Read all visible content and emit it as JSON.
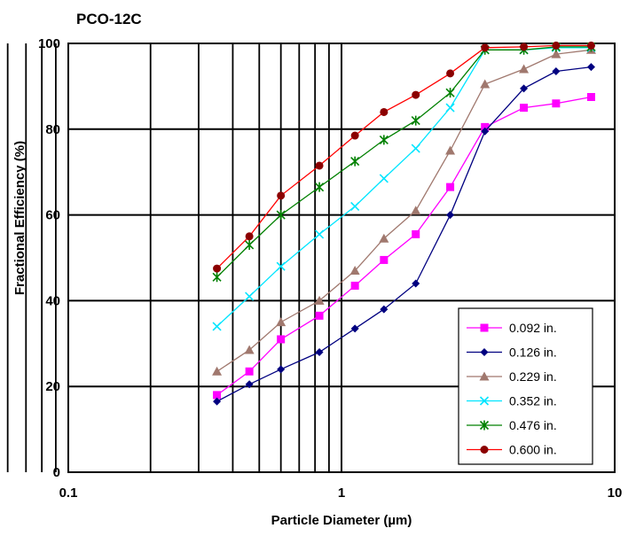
{
  "chart_data": {
    "type": "line",
    "title": "PCO-12C",
    "xlabel": "Particle Diameter (µm)",
    "ylabel": "Fractional Efficiency (%)",
    "x_scale": "log",
    "xlim": [
      0.1,
      10
    ],
    "ylim": [
      0,
      100
    ],
    "x_tick_labels": [
      "0.1",
      "1",
      "10"
    ],
    "y_tick_labels": [
      "0",
      "20",
      "40",
      "60",
      "80",
      "100"
    ],
    "grid": true,
    "legend_position": "bottom-right",
    "x": [
      0.35,
      0.46,
      0.6,
      0.83,
      1.12,
      1.43,
      1.87,
      2.5,
      3.35,
      4.65,
      6.1,
      8.2
    ],
    "series": [
      {
        "name": "0.092 in.",
        "color": "#ff00ff",
        "marker": "square",
        "values": [
          18,
          23.5,
          31,
          36.5,
          43.5,
          49.5,
          55.5,
          66.5,
          80.5,
          85,
          86,
          87.5
        ]
      },
      {
        "name": "0.126 in.",
        "color": "#000080",
        "marker": "diamond",
        "values": [
          16.5,
          20.5,
          24,
          28,
          33.5,
          38,
          44,
          60,
          79.5,
          89.5,
          93.5,
          94.5
        ]
      },
      {
        "name": "0.229 in.",
        "color": "#a0786e",
        "marker": "triangle",
        "values": [
          23.5,
          28.5,
          35,
          40,
          47,
          54.5,
          61,
          75,
          90.5,
          94,
          97.5,
          98.5
        ]
      },
      {
        "name": "0.352 in.",
        "color": "#00e5ff",
        "marker": "x",
        "values": [
          34,
          41,
          48,
          55.5,
          62,
          68.5,
          75.5,
          85,
          98.5,
          98.5,
          99,
          99
        ]
      },
      {
        "name": "0.476 in.",
        "color": "#008000",
        "marker": "star",
        "values": [
          45.5,
          53,
          60,
          66.5,
          72.5,
          77.5,
          82,
          88.5,
          98.5,
          98.5,
          99.2,
          99.2
        ]
      },
      {
        "name": "0.600 in.",
        "color": "#8b0000",
        "marker": "circle",
        "line_color": "#ff0000",
        "values": [
          47.5,
          55,
          64.5,
          71.5,
          78.5,
          84,
          88,
          93,
          99,
          99.2,
          99.5,
          99.5
        ]
      }
    ]
  }
}
